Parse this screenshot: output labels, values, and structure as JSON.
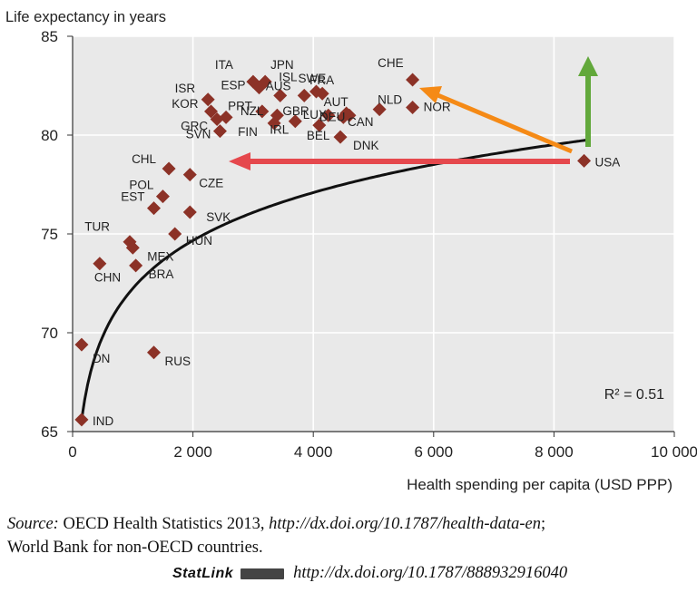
{
  "chart_data": {
    "type": "scatter",
    "ylabel": "Life expectancy in years",
    "xlabel": "Health spending per capita (USD PPP)",
    "xlim": [
      0,
      10000
    ],
    "ylim": [
      65,
      85
    ],
    "xticks": [
      0,
      2000,
      4000,
      6000,
      8000,
      10000
    ],
    "xtick_labels": [
      "0",
      "2 000",
      "4 000",
      "6 000",
      "8 000",
      "10 000"
    ],
    "yticks": [
      65,
      70,
      75,
      80,
      85
    ],
    "ytick_labels": [
      "65",
      "70",
      "75",
      "80",
      "85"
    ],
    "annotation": "R² = 0.51",
    "points": [
      {
        "code": "USA",
        "x": 8500,
        "y": 78.7,
        "label": "USA"
      },
      {
        "code": "CHE",
        "x": 5650,
        "y": 82.8,
        "label": "CHE"
      },
      {
        "code": "NOR",
        "x": 5650,
        "y": 81.4,
        "label": "NOR"
      },
      {
        "code": "NLD",
        "x": 5100,
        "y": 81.3,
        "label": "NLD"
      },
      {
        "code": "CAN",
        "x": 4600,
        "y": 81.0,
        "label": "CAN"
      },
      {
        "code": "AUT",
        "x": 4550,
        "y": 81.1,
        "label": "AUT"
      },
      {
        "code": "DEU",
        "x": 4500,
        "y": 80.9,
        "label": "DEU"
      },
      {
        "code": "DNK",
        "x": 4450,
        "y": 79.9,
        "label": "DNK"
      },
      {
        "code": "FRA",
        "x": 4150,
        "y": 82.1,
        "label": "FRA"
      },
      {
        "code": "LUX",
        "x": 4250,
        "y": 81.0,
        "label": "LUX"
      },
      {
        "code": "BEL",
        "x": 4100,
        "y": 80.5,
        "label": "BEL"
      },
      {
        "code": "SWE",
        "x": 4050,
        "y": 82.2,
        "label": "SWE"
      },
      {
        "code": "ISL",
        "x": 3850,
        "y": 82.0,
        "label": "ISL"
      },
      {
        "code": "IRL",
        "x": 3700,
        "y": 80.7,
        "label": "IRL"
      },
      {
        "code": "JPN",
        "x": 3200,
        "y": 82.7,
        "label": "JPN"
      },
      {
        "code": "AUS",
        "x": 3450,
        "y": 82.0,
        "label": "AUS"
      },
      {
        "code": "GBR",
        "x": 3400,
        "y": 81.0,
        "label": "GBR"
      },
      {
        "code": "FIN",
        "x": 3350,
        "y": 80.6,
        "label": "FIN"
      },
      {
        "code": "ITA",
        "x": 3000,
        "y": 82.7,
        "label": "ITA"
      },
      {
        "code": "ESP",
        "x": 3100,
        "y": 82.4,
        "label": "ESP"
      },
      {
        "code": "NZL",
        "x": 3150,
        "y": 81.2,
        "label": "NZL"
      },
      {
        "code": "ISR",
        "x": 2250,
        "y": 81.8,
        "label": "ISR"
      },
      {
        "code": "KOR",
        "x": 2300,
        "y": 81.2,
        "label": "KOR"
      },
      {
        "code": "PRT",
        "x": 2550,
        "y": 80.9,
        "label": "PRT"
      },
      {
        "code": "GRC",
        "x": 2400,
        "y": 80.8,
        "label": "GRC"
      },
      {
        "code": "SVN",
        "x": 2450,
        "y": 80.2,
        "label": "SVN"
      },
      {
        "code": "CHL",
        "x": 1600,
        "y": 78.3,
        "label": "CHL"
      },
      {
        "code": "CZE",
        "x": 1950,
        "y": 78.0,
        "label": "CZE"
      },
      {
        "code": "POL",
        "x": 1500,
        "y": 76.9,
        "label": "POL"
      },
      {
        "code": "EST",
        "x": 1350,
        "y": 76.3,
        "label": "EST"
      },
      {
        "code": "SVK",
        "x": 1950,
        "y": 76.1,
        "label": "SVK"
      },
      {
        "code": "HUN",
        "x": 1700,
        "y": 75.0,
        "label": "HUN"
      },
      {
        "code": "TUR",
        "x": 950,
        "y": 74.6,
        "label": "TUR"
      },
      {
        "code": "MEX",
        "x": 1000,
        "y": 74.3,
        "label": "MEX"
      },
      {
        "code": "BRA",
        "x": 1050,
        "y": 73.4,
        "label": "BRA"
      },
      {
        "code": "CHN",
        "x": 450,
        "y": 73.5,
        "label": "CHN"
      },
      {
        "code": "IDN",
        "x": 150,
        "y": 69.4,
        "label": "DN"
      },
      {
        "code": "RUS",
        "x": 1350,
        "y": 69.0,
        "label": "RUS"
      },
      {
        "code": "IND",
        "x": 150,
        "y": 65.6,
        "label": "IND"
      }
    ]
  },
  "source": {
    "prefix": "Source:",
    "text1": "OECD Health Statistics 2013,",
    "url1": "http://dx.doi.org/10.1787/health-data-en",
    "text2": "World Bank for non-OECD countries.",
    "statlink_label": "StatLink",
    "statlink_url": "http://dx.doi.org/10.1787/888932916040"
  }
}
